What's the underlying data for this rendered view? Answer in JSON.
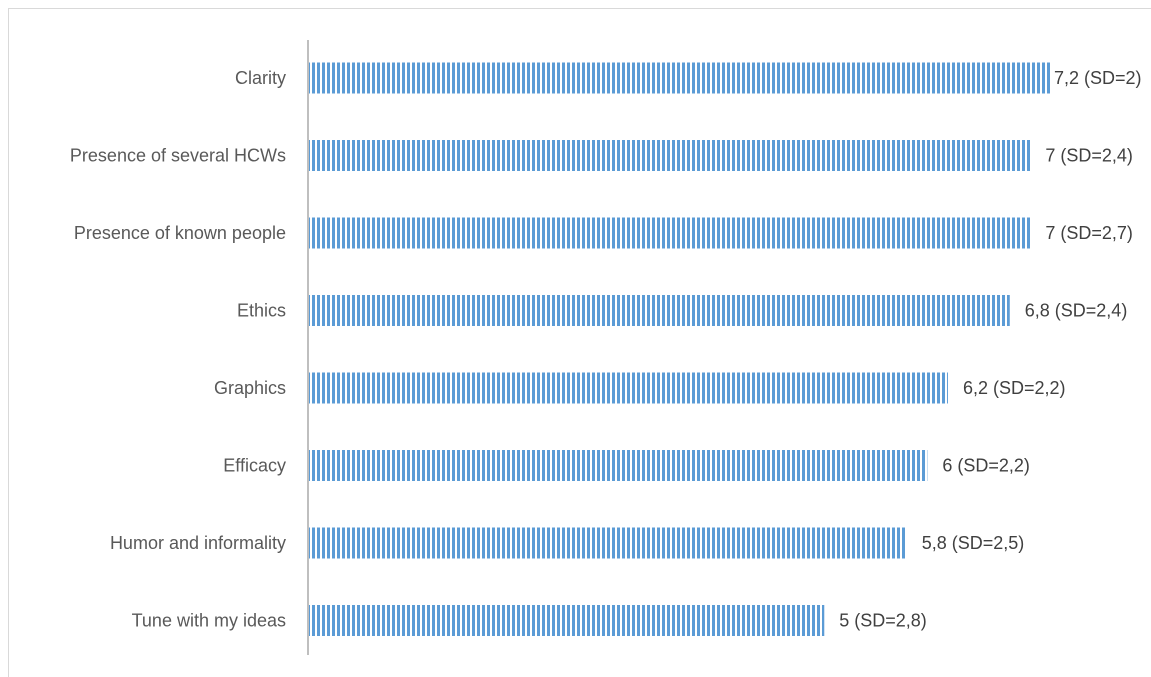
{
  "chart_data": {
    "type": "bar",
    "orientation": "horizontal",
    "categories": [
      "Clarity",
      "Presence of several HCWs",
      "Presence of known people",
      "Ethics",
      "Graphics",
      "Efficacy",
      "Humor and informality",
      "Tune with my ideas"
    ],
    "values": [
      7.2,
      7,
      7,
      6.8,
      6.2,
      6,
      5.8,
      5
    ],
    "data_labels": [
      "7,2 (SD=2)",
      "7 (SD=2,4)",
      "7 (SD=2,7)",
      "6,8 (SD=2,4)",
      "6,2 (SD=2,2)",
      "6 (SD=2,2)",
      "5,8 (SD=2,5)",
      "5 (SD=2,8)"
    ],
    "sd": [
      2,
      2.4,
      2.7,
      2.4,
      2.2,
      2.2,
      2.5,
      2.8
    ],
    "xlim": [
      0,
      7.2
    ],
    "title": "",
    "xlabel": "",
    "ylabel": "",
    "grid": false,
    "legend": "none",
    "colors": {
      "bar_fill": "#5b9bd5",
      "bar_stripe": "#ffffff",
      "axis": "#bfbfbf"
    }
  }
}
